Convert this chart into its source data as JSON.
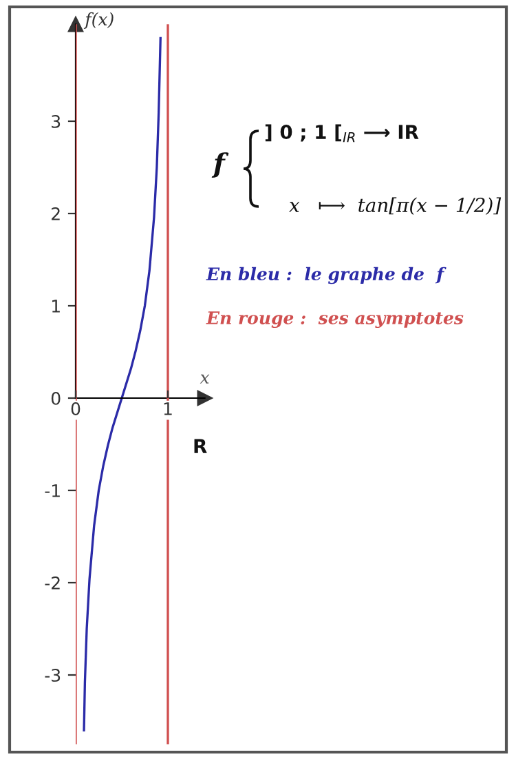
{
  "chart_data": {
    "type": "line",
    "xlabel": "x",
    "ylabel": "f(x)",
    "x": [
      0.09,
      0.1,
      0.12,
      0.15,
      0.2,
      0.25,
      0.3,
      0.35,
      0.4,
      0.45,
      0.5,
      0.55,
      0.6,
      0.65,
      0.7,
      0.75,
      0.8,
      0.85,
      0.88,
      0.9,
      0.92
    ],
    "series": [
      {
        "color": "#2b2ba8",
        "values": [
          -3.6,
          -3.08,
          -2.5,
          -1.96,
          -1.38,
          -1.0,
          -0.73,
          -0.51,
          -0.32,
          -0.16,
          0.0,
          0.16,
          0.32,
          0.51,
          0.73,
          1.0,
          1.38,
          1.96,
          2.5,
          3.08,
          3.9
        ]
      }
    ],
    "xlim": [
      0,
      1.4
    ],
    "xticks": [
      0,
      1
    ],
    "ylim": [
      -3.75,
      4.05
    ],
    "yticks": [
      -3,
      -2,
      -1,
      0,
      1,
      2,
      3
    ],
    "ref_lines": [
      {
        "axis": "x",
        "value": 0,
        "color": "#d05050"
      },
      {
        "axis": "x",
        "value": 1,
        "color": "#d05050"
      }
    ],
    "annotations": [
      "R",
      "f",
      "] 0 ; 1 [$_{IR}$ ⟶ IR",
      "x   ⟼  tan[π(x − 1/2)]",
      "En bleu :  le graphe de  f",
      "En rouge :  ses asymptotes"
    ],
    "grid": false
  }
}
